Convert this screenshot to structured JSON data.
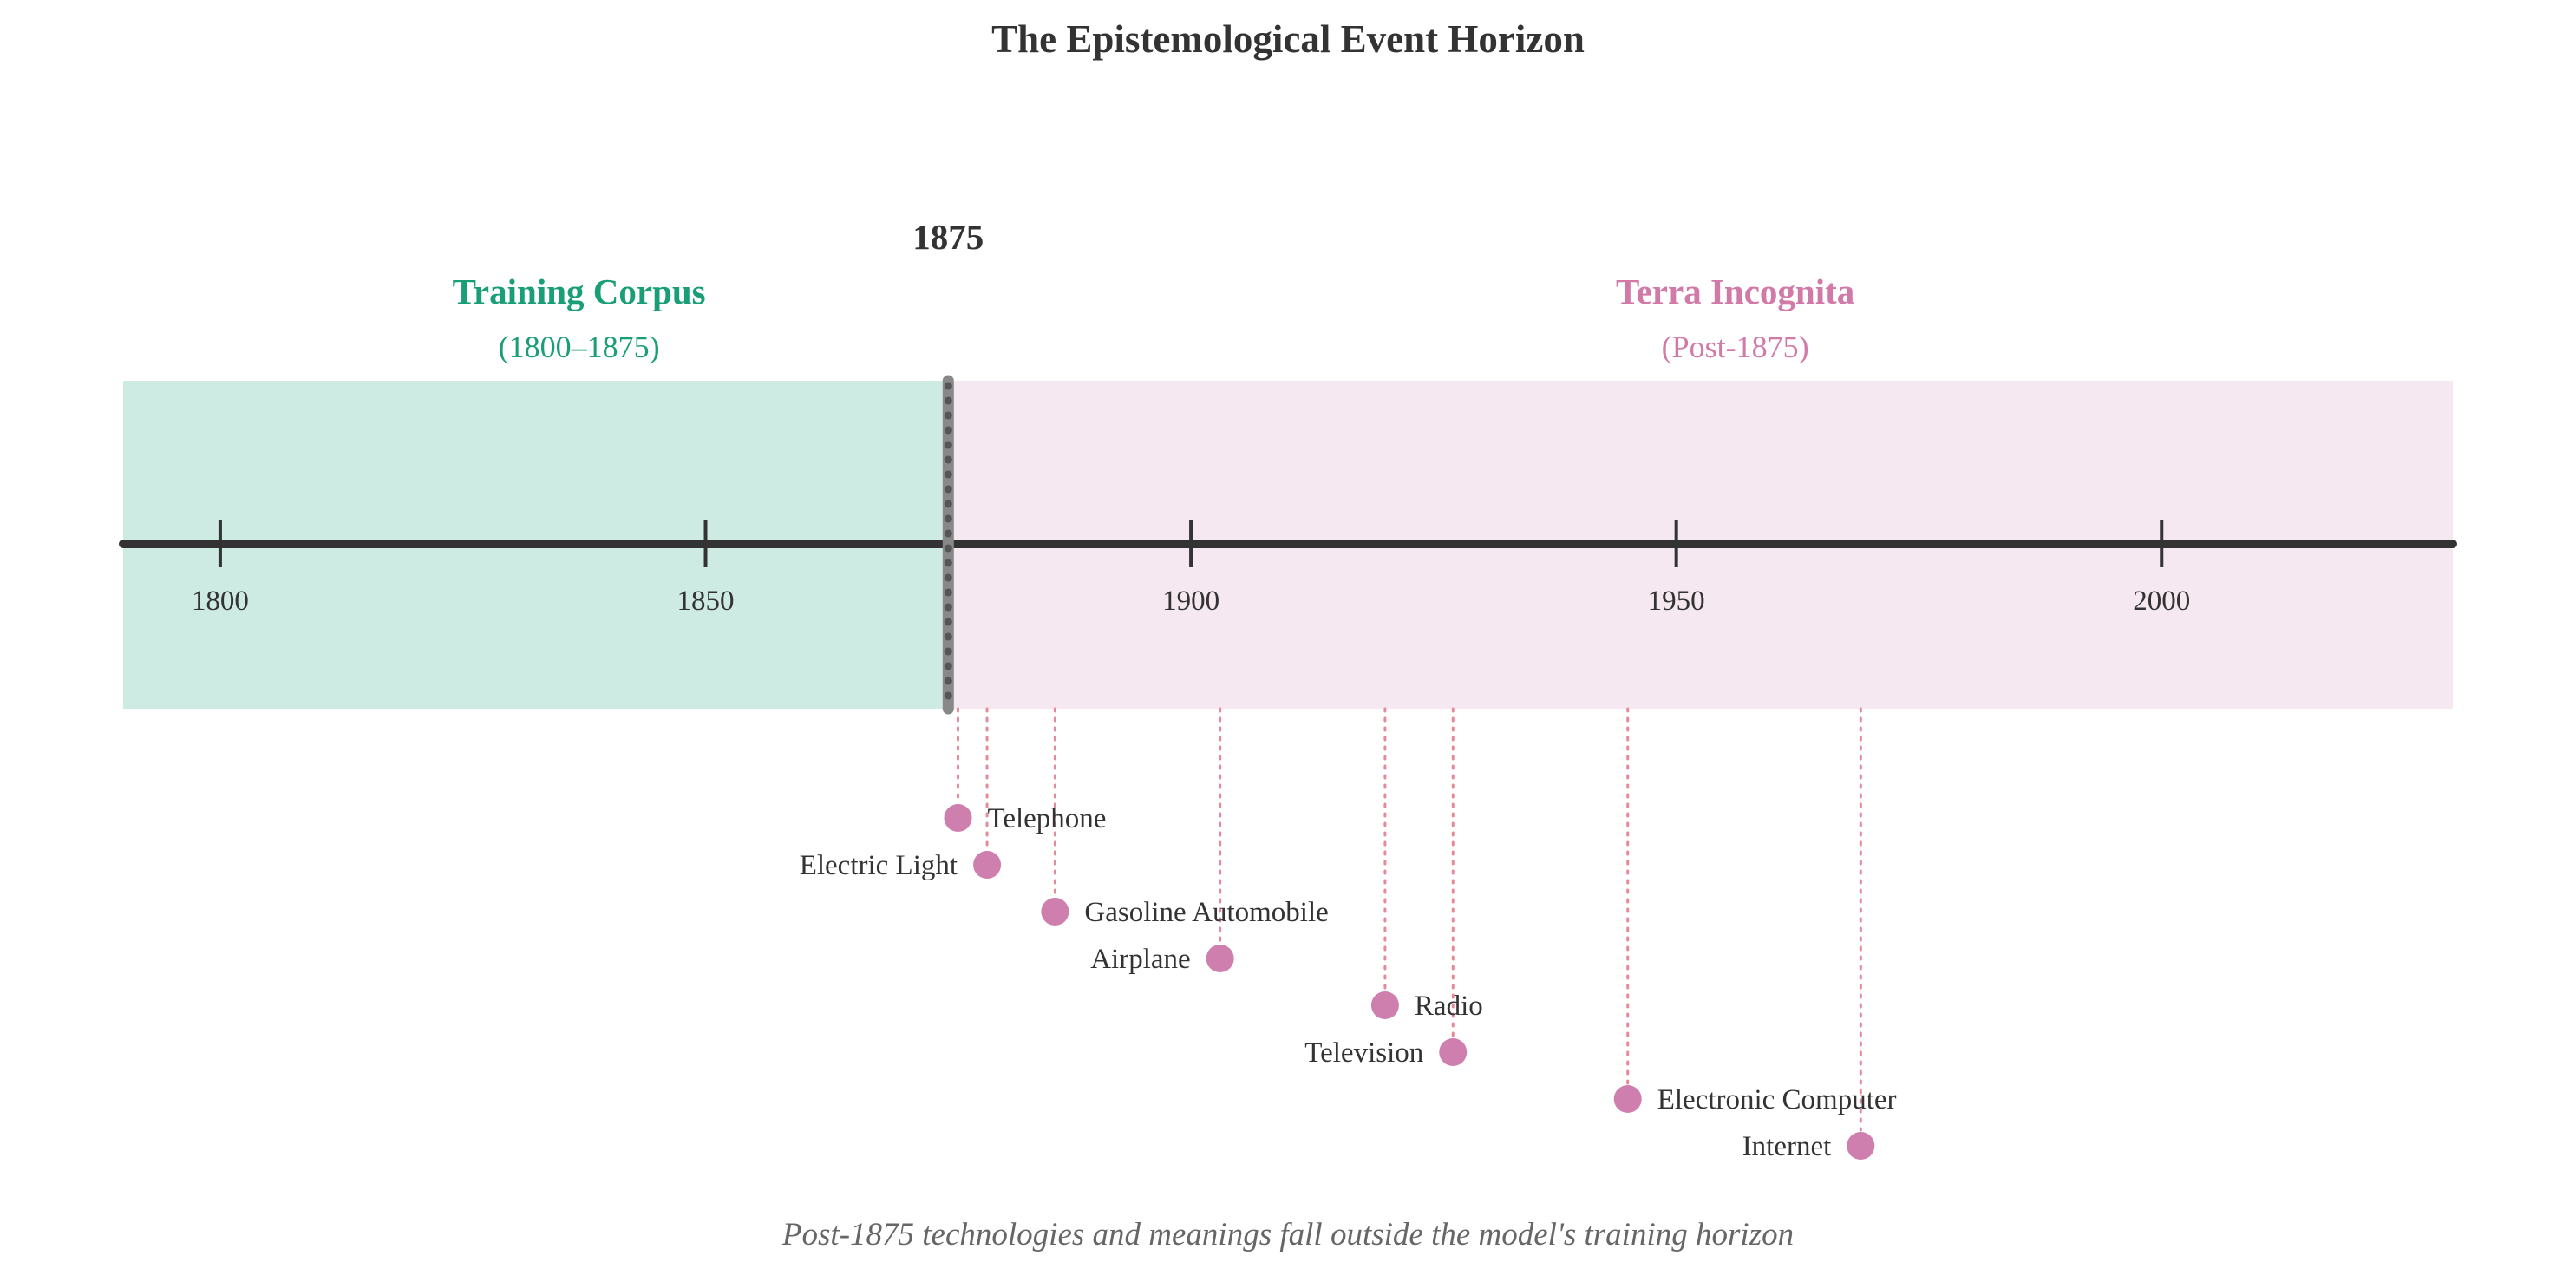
{
  "title": "The Epistemological Event Horizon",
  "caption": "Post-1875 technologies and meanings fall outside the model's training horizon",
  "cutoff": {
    "year": 1875,
    "label": "1875"
  },
  "regions": {
    "known": {
      "title": "Training Corpus",
      "subtitle": "(1800–1875)",
      "start": 1790,
      "end": 1875
    },
    "unknown": {
      "title": "Terra Incognita",
      "subtitle": "(Post-1875)",
      "start": 1875,
      "end": 2030
    }
  },
  "colors": {
    "known_fill": "#cdebe2",
    "known_text": "#1a9e77",
    "unknown_fill": "#f6e8f0",
    "unknown_text": "#d17aa8",
    "event_dot": "#cf7fae",
    "event_stem": "#e58a9a",
    "axis": "#333333"
  },
  "chart_data": {
    "type": "timeline",
    "title": "The Epistemological Event Horizon",
    "axis_range": [
      1790,
      2030
    ],
    "ticks": [
      {
        "year": 1800,
        "label": "1800"
      },
      {
        "year": 1850,
        "label": "1850"
      },
      {
        "year": 1900,
        "label": "1900"
      },
      {
        "year": 1950,
        "label": "1950"
      },
      {
        "year": 2000,
        "label": "2000"
      }
    ],
    "events": [
      {
        "name": "Telephone",
        "year": 1876,
        "label_side": "right"
      },
      {
        "name": "Electric Light",
        "year": 1879,
        "label_side": "left"
      },
      {
        "name": "Gasoline Automobile",
        "year": 1886,
        "label_side": "right"
      },
      {
        "name": "Airplane",
        "year": 1903,
        "label_side": "left"
      },
      {
        "name": "Radio",
        "year": 1920,
        "label_side": "right"
      },
      {
        "name": "Television",
        "year": 1927,
        "label_side": "left"
      },
      {
        "name": "Electronic Computer",
        "year": 1945,
        "label_side": "right"
      },
      {
        "name": "Internet",
        "year": 1969,
        "label_side": "left"
      }
    ]
  }
}
